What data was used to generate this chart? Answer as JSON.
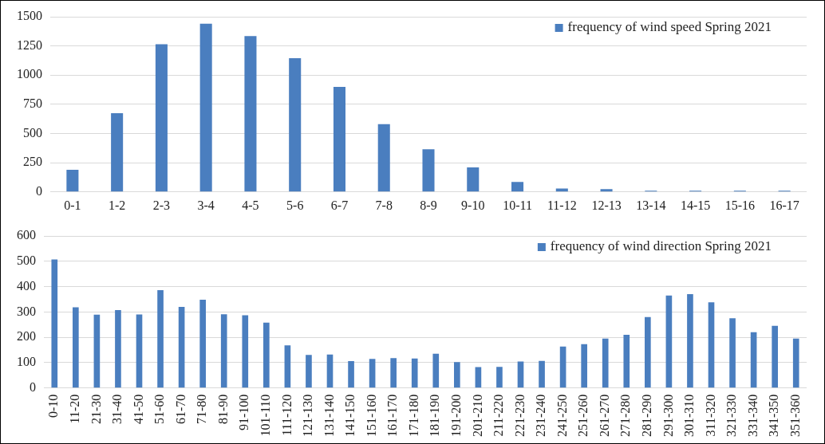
{
  "chart_data": [
    {
      "type": "bar",
      "categories": [
        "0-1",
        "1-2",
        "2-3",
        "3-4",
        "4-5",
        "5-6",
        "6-7",
        "7-8",
        "8-9",
        "9-10",
        "10-11",
        "11-12",
        "12-13",
        "13-14",
        "14-15",
        "15-16",
        "16-17"
      ],
      "series": [
        {
          "name": "frequency of wind speed Spring 2021",
          "color": "#4a7ebf",
          "values": [
            190,
            675,
            1265,
            1440,
            1335,
            1145,
            900,
            580,
            365,
            210,
            85,
            30,
            25,
            10,
            10,
            10,
            10
          ]
        }
      ],
      "ylim": [
        0,
        1500
      ],
      "yticks": [
        0,
        250,
        500,
        750,
        1000,
        1250,
        1500
      ],
      "grid": "y",
      "legend": "top right"
    },
    {
      "type": "bar",
      "categories": [
        "0-10",
        "11-20",
        "21-30",
        "31-40",
        "41-50",
        "51-60",
        "61-70",
        "71-80",
        "81-90",
        "91-100",
        "101-110",
        "111-120",
        "121-130",
        "131-140",
        "141-150",
        "151-160",
        "161-170",
        "171-180",
        "181-190",
        "191-200",
        "201-210",
        "211-220",
        "221-230",
        "231-240",
        "241-250",
        "251-260",
        "261-270",
        "271-280",
        "281-290",
        "291-300",
        "301-310",
        "311-320",
        "321-330",
        "331-340",
        "341-350",
        "351-360"
      ],
      "series": [
        {
          "name": "frequency of wind direction Spring 2021",
          "color": "#4a7ebf",
          "values": [
            507,
            318,
            289,
            307,
            290,
            386,
            320,
            348,
            291,
            287,
            258,
            168,
            130,
            132,
            106,
            115,
            118,
            116,
            135,
            102,
            82,
            83,
            104,
            107,
            163,
            173,
            195,
            210,
            280,
            365,
            370,
            338,
            275,
            220,
            245,
            195
          ]
        }
      ],
      "ylim": [
        0,
        600
      ],
      "yticks": [
        0,
        100,
        200,
        300,
        400,
        500,
        600
      ],
      "grid": "y",
      "legend": "top right"
    }
  ]
}
